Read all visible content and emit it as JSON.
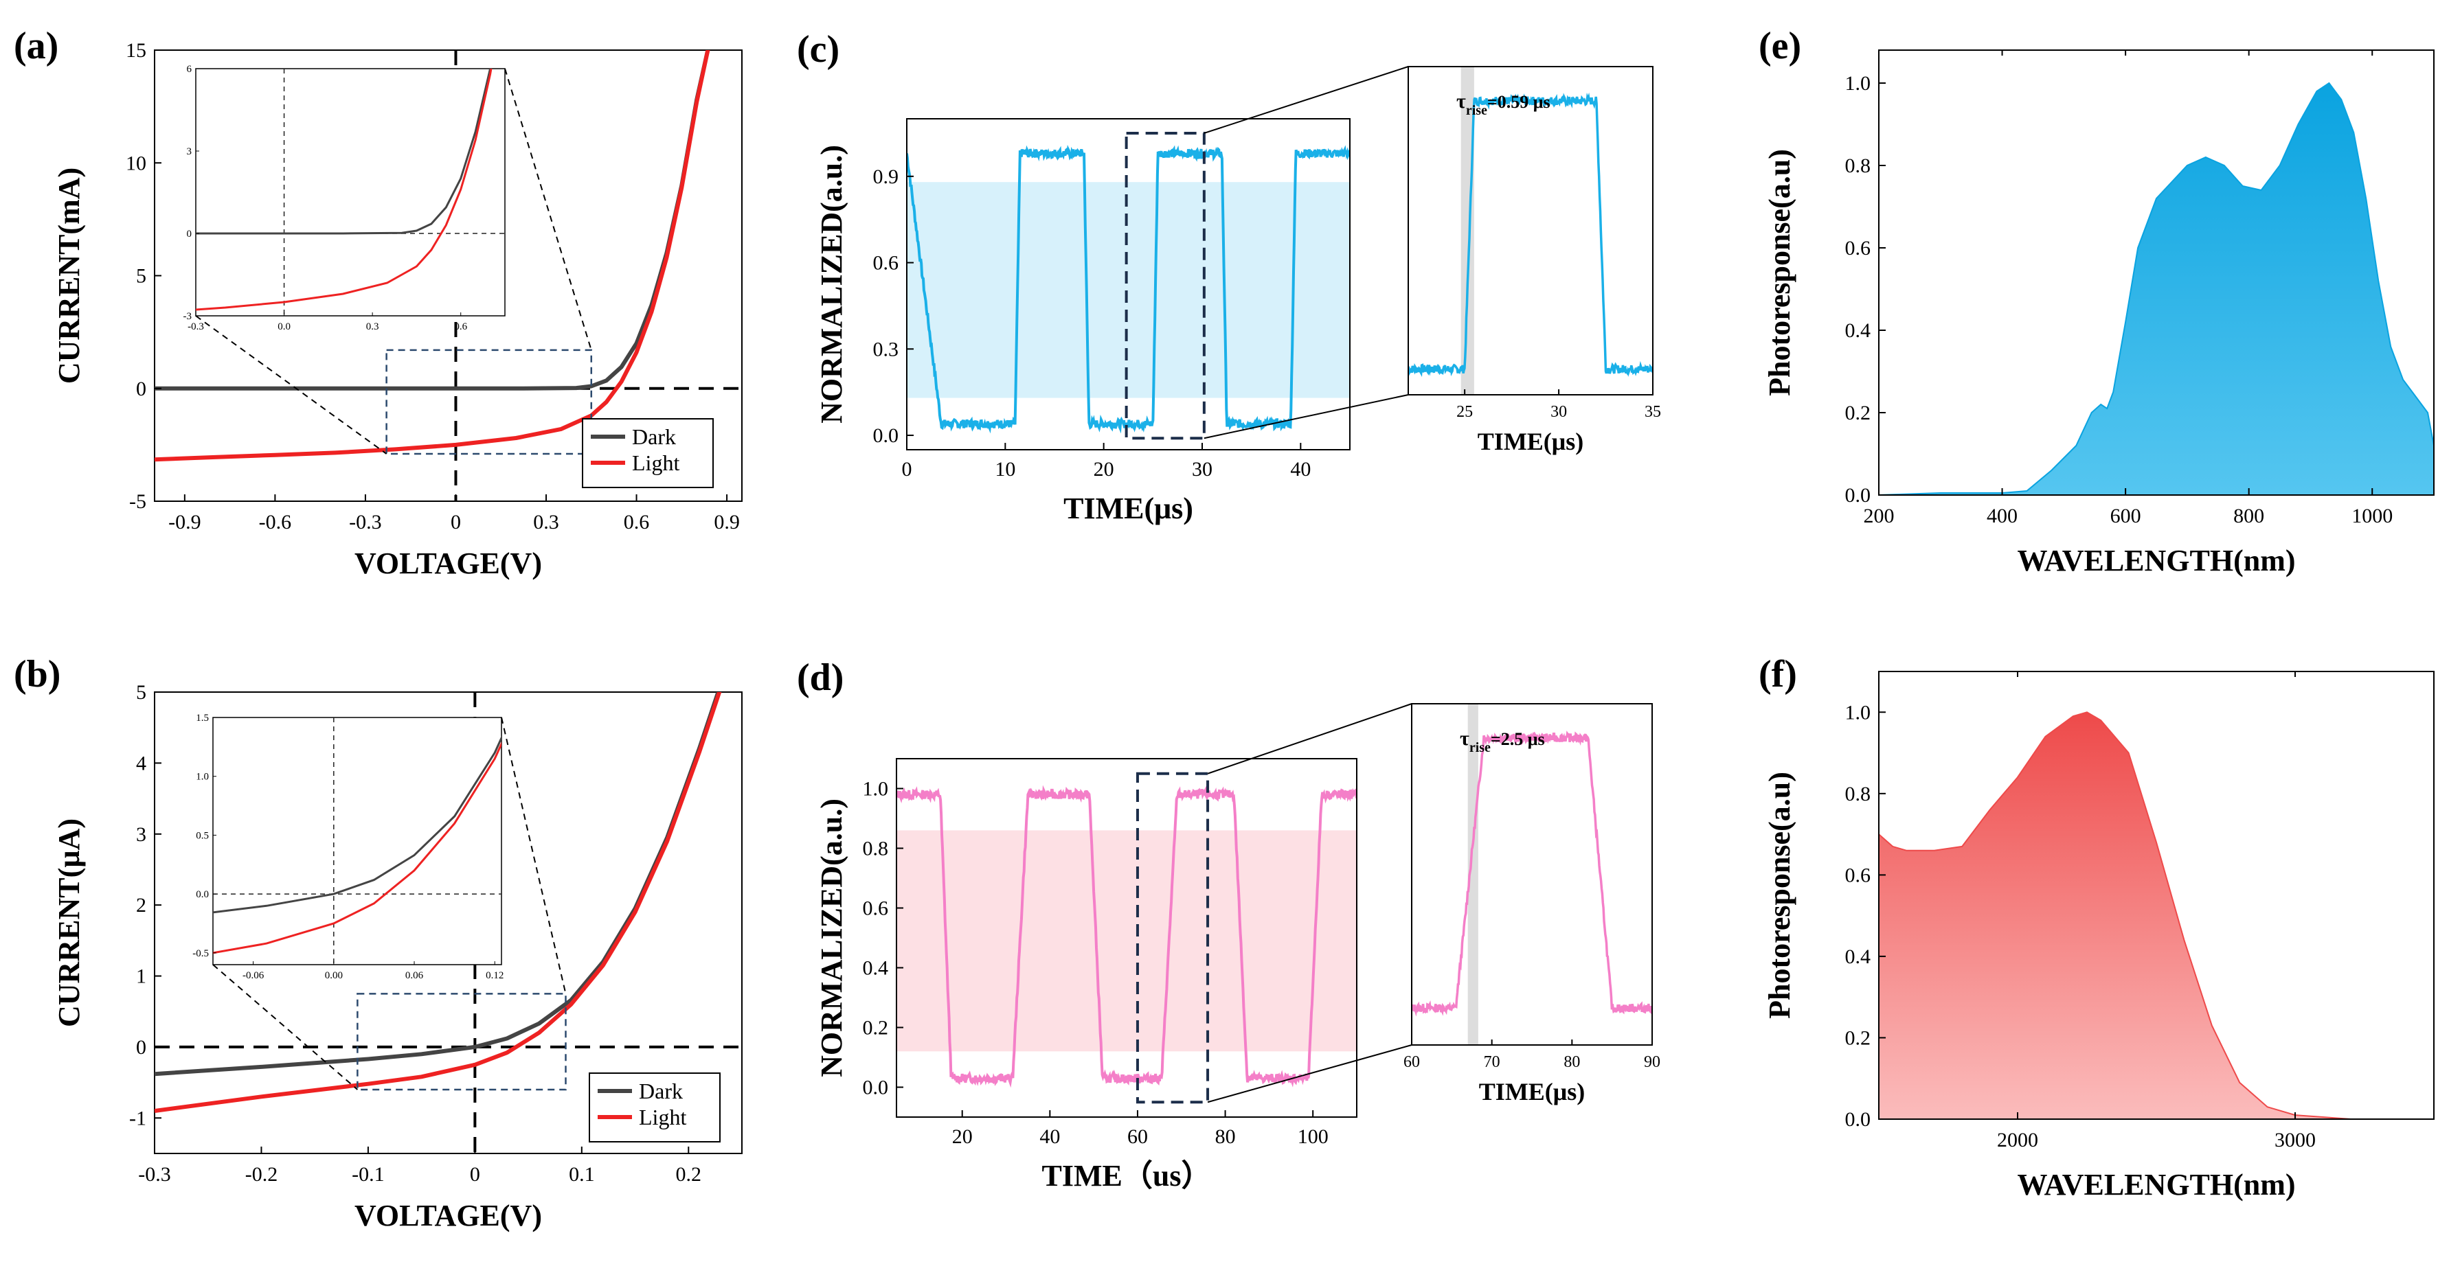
{
  "colors": {
    "dark": "#444444",
    "light": "#ee2222",
    "cyan": "#1ab0e8",
    "cyan_band": "#d7f1fb",
    "pink": "#f47fc8",
    "pink_band": "#fde0e4",
    "red_top": "#ee4a4a",
    "red_bottom": "#fbbcbc",
    "blue_top": "#0aa3e0",
    "blue_bottom": "#55c6f0"
  },
  "chart_data": [
    {
      "panel": "a",
      "type": "line",
      "panel_label": "(a)",
      "xlabel": "VOLTAGE(V)",
      "ylabel": "CURRENT(mA)",
      "xlim": [
        -1.0,
        0.95
      ],
      "ylim": [
        -5,
        15
      ],
      "xticks": [
        -0.9,
        -0.6,
        -0.3,
        0,
        0.3,
        0.6,
        0.9
      ],
      "xtick_labels": [
        "-0.9",
        "-0.6",
        "-0.3",
        "0",
        "0.3",
        "0.6",
        "0.9"
      ],
      "yticks": [
        -5,
        0,
        5,
        10,
        15
      ],
      "ytick_labels": [
        "-5",
        "0",
        "5",
        "10",
        "15"
      ],
      "legend": [
        "Dark",
        "Light"
      ],
      "series": [
        {
          "name": "Dark",
          "x": [
            -1.0,
            -0.6,
            -0.2,
            0.2,
            0.4,
            0.45,
            0.5,
            0.55,
            0.6,
            0.65,
            0.7,
            0.75,
            0.8,
            0.84
          ],
          "y": [
            0.0,
            0.0,
            0.0,
            0.0,
            0.02,
            0.1,
            0.35,
            0.95,
            2.0,
            3.7,
            6.0,
            9.0,
            12.8,
            15.2
          ]
        },
        {
          "name": "Light",
          "x": [
            -1.0,
            -0.8,
            -0.6,
            -0.4,
            -0.2,
            0.0,
            0.2,
            0.35,
            0.45,
            0.5,
            0.55,
            0.6,
            0.65,
            0.7,
            0.75,
            0.8,
            0.84
          ],
          "y": [
            -3.15,
            -3.05,
            -2.95,
            -2.85,
            -2.7,
            -2.5,
            -2.2,
            -1.8,
            -1.2,
            -0.6,
            0.3,
            1.6,
            3.4,
            5.8,
            8.9,
            12.7,
            15.2
          ]
        }
      ],
      "inset": {
        "xlim": [
          -0.3,
          0.75
        ],
        "ylim": [
          -3,
          6
        ],
        "xticks": [
          -0.3,
          0.0,
          0.3,
          0.6
        ],
        "xtick_labels": [
          "-0.3",
          "0.0",
          "0.3",
          "0.6"
        ],
        "yticks": [
          -3,
          0,
          3,
          6
        ],
        "ytick_labels": [
          "-3",
          "0",
          "3",
          "6"
        ]
      },
      "zoom_box": {
        "x": [
          -0.23,
          0.45
        ],
        "y": [
          -2.9,
          1.7
        ]
      }
    },
    {
      "panel": "b",
      "type": "line",
      "panel_label": "(b)",
      "xlabel": "VOLTAGE(V)",
      "ylabel": "CURRENT(µA)",
      "xlim": [
        -0.3,
        0.25
      ],
      "ylim": [
        -1.5,
        5
      ],
      "xticks": [
        -0.3,
        -0.2,
        -0.1,
        0,
        0.1,
        0.2
      ],
      "xtick_labels": [
        "-0.3",
        "-0.2",
        "-0.1",
        "0",
        "0.1",
        "0.2"
      ],
      "yticks": [
        -1,
        0,
        1,
        2,
        3,
        4,
        5
      ],
      "ytick_labels": [
        "-1",
        "0",
        "1",
        "2",
        "3",
        "4",
        "5"
      ],
      "legend": [
        "Dark",
        "Light"
      ],
      "series": [
        {
          "name": "Dark",
          "x": [
            -0.3,
            -0.2,
            -0.1,
            -0.05,
            0.0,
            0.03,
            0.06,
            0.09,
            0.12,
            0.15,
            0.18,
            0.21,
            0.23
          ],
          "y": [
            -0.38,
            -0.28,
            -0.17,
            -0.1,
            0.0,
            0.12,
            0.33,
            0.66,
            1.2,
            1.95,
            2.95,
            4.2,
            5.1
          ]
        },
        {
          "name": "Light",
          "x": [
            -0.3,
            -0.2,
            -0.1,
            -0.05,
            0.0,
            0.03,
            0.06,
            0.09,
            0.12,
            0.15,
            0.18,
            0.21,
            0.23
          ],
          "y": [
            -0.9,
            -0.7,
            -0.52,
            -0.42,
            -0.25,
            -0.08,
            0.2,
            0.6,
            1.15,
            1.9,
            2.9,
            4.15,
            5.05
          ]
        }
      ],
      "inset": {
        "xlim": [
          -0.09,
          0.125
        ],
        "ylim": [
          -0.6,
          1.5
        ],
        "xticks": [
          -0.06,
          0.0,
          0.06,
          0.12
        ],
        "xtick_labels": [
          "-0.06",
          "0.00",
          "0.06",
          "0.12"
        ],
        "yticks": [
          -0.5,
          0.0,
          0.5,
          1.0,
          1.5
        ],
        "ytick_labels": [
          "-0.5",
          "0.0",
          "0.5",
          "1.0",
          "1.5"
        ]
      },
      "zoom_box": {
        "x": [
          -0.11,
          0.085
        ],
        "y": [
          -0.6,
          0.75
        ]
      }
    },
    {
      "panel": "c",
      "type": "line",
      "panel_label": "(c)",
      "xlabel": "TIME(μs)",
      "ylabel": "NORMALIZED(a.u.)",
      "xlim": [
        0,
        45
      ],
      "ylim": [
        -0.05,
        1.1
      ],
      "xticks": [
        0,
        10,
        20,
        30,
        40
      ],
      "xtick_labels": [
        "0",
        "10",
        "20",
        "30",
        "40"
      ],
      "yticks": [
        0.0,
        0.3,
        0.6,
        0.9
      ],
      "ytick_labels": [
        "0.0",
        "0.3",
        "0.6",
        "0.9"
      ],
      "high": 0.98,
      "low": 0.04,
      "band": [
        0.13,
        0.88
      ],
      "edges": [
        [
          0,
          3.5,
          "fall"
        ],
        [
          11,
          11.5,
          "rise"
        ],
        [
          18,
          18.5,
          "fall"
        ],
        [
          25,
          25.5,
          "rise"
        ],
        [
          32,
          32.5,
          "fall"
        ],
        [
          39,
          39.5,
          "rise"
        ]
      ],
      "zoom_box": {
        "x": [
          22.3,
          30.2
        ],
        "y": [
          -0.01,
          1.05
        ]
      },
      "inset": {
        "xlim": [
          22,
          35
        ],
        "xticks": [
          25,
          30,
          35
        ],
        "xtick_labels": [
          "25",
          "30",
          "35"
        ],
        "xlabel": "TIME(μs)",
        "annotation_tau": "τ",
        "annotation_sub": "rise",
        "annotation_value": "=0.59 μs",
        "shade": [
          24.8,
          25.5
        ]
      }
    },
    {
      "panel": "d",
      "type": "line",
      "panel_label": "(d)",
      "xlabel": "TIME（us）",
      "ylabel": "NORMALIZED(a.u.)",
      "xlim": [
        5,
        110
      ],
      "ylim": [
        -0.1,
        1.1
      ],
      "xticks": [
        20,
        40,
        60,
        80,
        100
      ],
      "xtick_labels": [
        "20",
        "40",
        "60",
        "80",
        "100"
      ],
      "yticks": [
        0.0,
        0.2,
        0.4,
        0.6,
        0.8,
        1.0
      ],
      "ytick_labels": [
        "0.0",
        "0.2",
        "0.4",
        "0.6",
        "0.8",
        "1.0"
      ],
      "high": 0.98,
      "low": 0.03,
      "band": [
        0.12,
        0.86
      ],
      "edges": [
        [
          15,
          17.5,
          "fall"
        ],
        [
          31.5,
          35,
          "rise"
        ],
        [
          49,
          52,
          "fall"
        ],
        [
          65.5,
          69,
          "rise"
        ],
        [
          82,
          85,
          "fall"
        ],
        [
          99,
          102,
          "rise"
        ]
      ],
      "zoom_box": {
        "x": [
          60,
          76
        ],
        "y": [
          -0.05,
          1.05
        ]
      },
      "inset": {
        "xlim": [
          60,
          90
        ],
        "xticks": [
          60,
          70,
          80,
          90
        ],
        "xtick_labels": [
          "60",
          "70",
          "80",
          "90"
        ],
        "xlabel": "TIME(μs)",
        "annotation_tau": "τ",
        "annotation_sub": "rise",
        "annotation_value": "=2.5 μs",
        "shade": [
          67,
          68.3
        ]
      }
    },
    {
      "panel": "e",
      "type": "area",
      "panel_label": "(e)",
      "xlabel": "WAVELENGTH(nm)",
      "ylabel": "Photoresponse(a.u)",
      "xlim": [
        200,
        1100
      ],
      "ylim": [
        0,
        1.08
      ],
      "xticks": [
        200,
        400,
        600,
        800,
        1000
      ],
      "xtick_labels": [
        "200",
        "400",
        "600",
        "800",
        "1000"
      ],
      "yticks": [
        0.0,
        0.2,
        0.4,
        0.6,
        0.8,
        1.0
      ],
      "ytick_labels": [
        "0.0",
        "0.2",
        "0.4",
        "0.6",
        "0.8",
        "1.0"
      ],
      "x": [
        200,
        300,
        400,
        440,
        480,
        520,
        545,
        560,
        570,
        580,
        600,
        620,
        650,
        700,
        730,
        760,
        790,
        820,
        850,
        880,
        910,
        930,
        950,
        970,
        990,
        1010,
        1030,
        1050,
        1070,
        1090,
        1100
      ],
      "y": [
        0.0,
        0.005,
        0.005,
        0.01,
        0.06,
        0.12,
        0.2,
        0.22,
        0.21,
        0.25,
        0.42,
        0.6,
        0.72,
        0.8,
        0.82,
        0.8,
        0.75,
        0.74,
        0.8,
        0.9,
        0.98,
        1.0,
        0.96,
        0.88,
        0.72,
        0.52,
        0.36,
        0.28,
        0.24,
        0.2,
        0.12
      ]
    },
    {
      "panel": "f",
      "type": "area",
      "panel_label": "(f)",
      "xlabel": "WAVELENGTH(nm)",
      "ylabel": "Photoresponse(a.u)",
      "xlim": [
        1500,
        3500
      ],
      "ylim": [
        0,
        1.1
      ],
      "xticks": [
        2000,
        3000
      ],
      "xtick_labels": [
        "2000",
        "3000"
      ],
      "yticks": [
        0.0,
        0.2,
        0.4,
        0.6,
        0.8,
        1.0
      ],
      "ytick_labels": [
        "0.0",
        "0.2",
        "0.4",
        "0.6",
        "0.8",
        "1.0"
      ],
      "x": [
        1500,
        1550,
        1600,
        1700,
        1800,
        1900,
        2000,
        2100,
        2200,
        2250,
        2300,
        2400,
        2500,
        2600,
        2700,
        2800,
        2900,
        3000,
        3100,
        3200,
        3300
      ],
      "y": [
        0.7,
        0.67,
        0.66,
        0.66,
        0.67,
        0.76,
        0.84,
        0.94,
        0.99,
        1.0,
        0.98,
        0.9,
        0.68,
        0.44,
        0.23,
        0.09,
        0.03,
        0.01,
        0.005,
        0.0,
        0.0
      ]
    }
  ]
}
